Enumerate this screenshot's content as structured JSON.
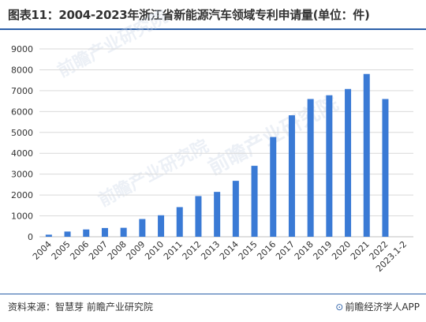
{
  "title": "图表11：2004-2023年浙江省新能源汽车领域专利申请量(单位：件)",
  "source": "资料来源：智慧芽 前瞻产业研究院",
  "brand": {
    "mark": "⊙",
    "text": "前瞻经济学人APP"
  },
  "colors": {
    "bar": "#3a7ad5",
    "title_rule": "#2b5fa8",
    "grid": "#d9d9d9",
    "axis": "#bfbfbf"
  },
  "chart_data": {
    "type": "bar",
    "categories": [
      "2004",
      "2005",
      "2006",
      "2007",
      "2008",
      "2009",
      "2010",
      "2011",
      "2012",
      "2013",
      "2014",
      "2015",
      "2016",
      "2017",
      "2018",
      "2019",
      "2020",
      "2021",
      "2022",
      "2023.1-2"
    ],
    "values": [
      100,
      250,
      350,
      420,
      430,
      850,
      1030,
      1420,
      1950,
      2150,
      2680,
      3400,
      4780,
      5820,
      6600,
      6780,
      7080,
      7800,
      6600,
      0
    ],
    "ylim": [
      0,
      9000
    ],
    "yticks": [
      "0",
      "1000",
      "2000",
      "3000",
      "4000",
      "5000",
      "6000",
      "7000",
      "8000",
      "9000"
    ],
    "grid": true,
    "legend": "none"
  }
}
